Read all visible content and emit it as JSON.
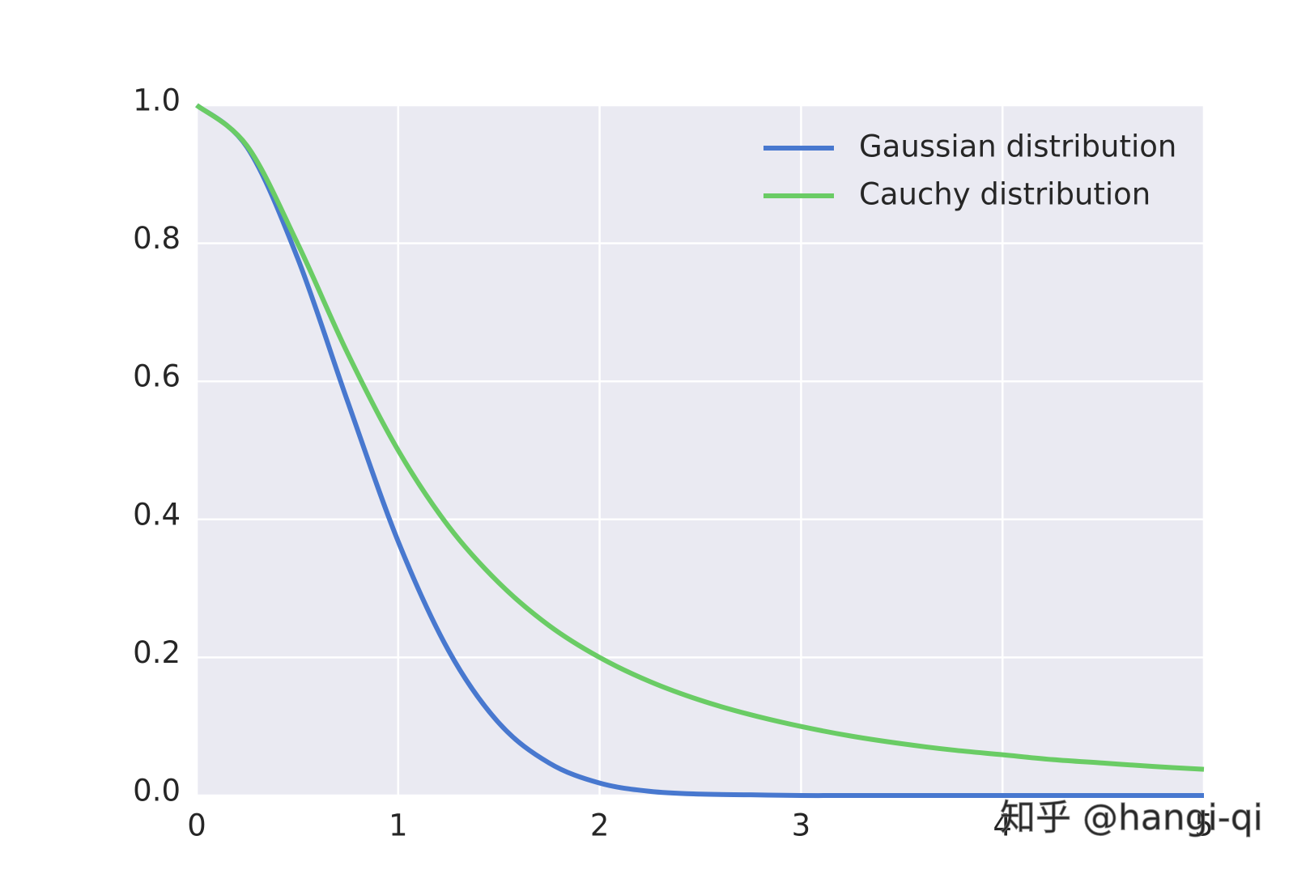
{
  "chart_data": {
    "type": "line",
    "x": [
      0,
      0.25,
      0.5,
      0.75,
      1,
      1.25,
      1.5,
      1.75,
      2,
      2.25,
      2.5,
      2.75,
      3,
      3.25,
      3.5,
      3.75,
      4,
      4.25,
      4.5,
      4.75,
      5
    ],
    "series": [
      {
        "name": "Gaussian distribution",
        "color": "#4878cf",
        "values": [
          1,
          0.939,
          0.779,
          0.57,
          0.368,
          0.21,
          0.105,
          0.047,
          0.018,
          0.006,
          0.002,
          0.001,
          0,
          0,
          0,
          0,
          0,
          0,
          0,
          0,
          0
        ]
      },
      {
        "name": "Cauchy distribution",
        "color": "#6acc65",
        "values": [
          1,
          0.941,
          0.8,
          0.64,
          0.5,
          0.39,
          0.308,
          0.246,
          0.2,
          0.165,
          0.138,
          0.117,
          0.1,
          0.086,
          0.075,
          0.066,
          0.059,
          0.052,
          0.047,
          0.042,
          0.038
        ]
      }
    ],
    "xlim": [
      0,
      5
    ],
    "xticks": [
      0,
      1,
      2,
      3,
      4,
      5
    ],
    "ylim": [
      0,
      1
    ],
    "yticks": [
      {
        "value": 0,
        "label": "0.0"
      },
      {
        "value": 0.2,
        "label": "0.2"
      },
      {
        "value": 0.4,
        "label": "0.4"
      },
      {
        "value": 0.6,
        "label": "0.6"
      },
      {
        "value": 0.8,
        "label": "0.8"
      },
      {
        "value": 1,
        "label": "1.0"
      }
    ],
    "grid": true,
    "legend": "upper-right",
    "watermark": "知乎 @hangi-qi"
  }
}
